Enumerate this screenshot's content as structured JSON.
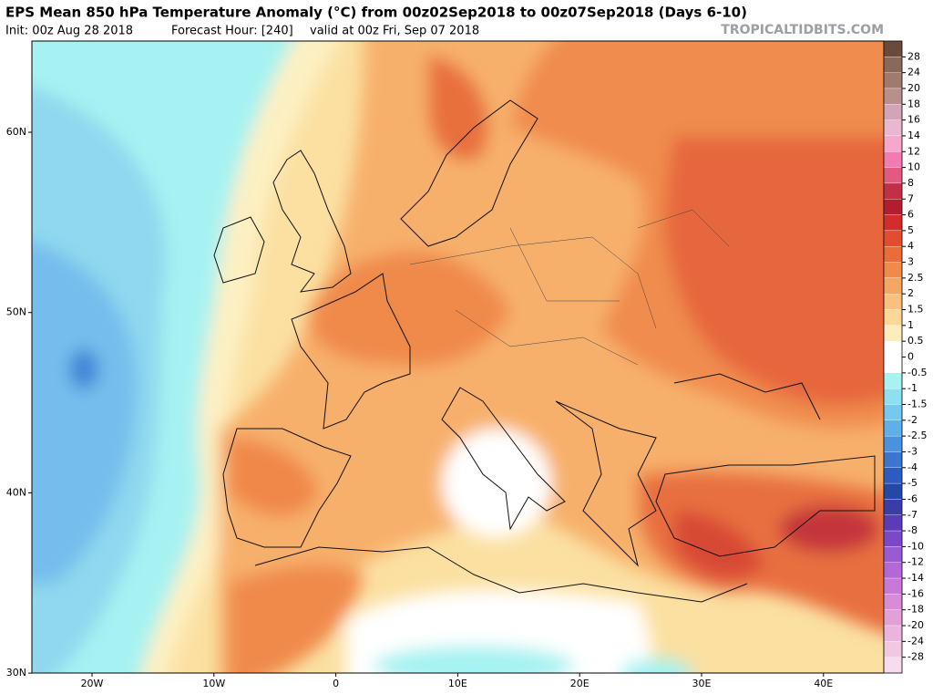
{
  "header": {
    "title": "EPS Mean 850 hPa Temperature Anomaly (°C) from 00z02Sep2018 to 00z07Sep2018 (Days 6-10)",
    "init": "Init: 00z Aug 28 2018",
    "forecast_hour": "Forecast Hour: [240]",
    "valid": "valid at 00z Fri, Sep 07 2018",
    "watermark": "TROPICALTIDBITS.COM"
  },
  "map": {
    "lat_labels": [
      "60N",
      "50N",
      "40N",
      "30N"
    ],
    "lon_labels": [
      "20W",
      "10W",
      "0",
      "10E",
      "20E",
      "30E",
      "40E"
    ]
  },
  "colorbar": {
    "levels": [
      28,
      24,
      20,
      18,
      16,
      14,
      12,
      10,
      8,
      7,
      6,
      5,
      4,
      3,
      2.5,
      2,
      1.5,
      1,
      0.5,
      0,
      -0.5,
      -1,
      -1.5,
      -2,
      -2.5,
      -3,
      -4,
      -5,
      -6,
      -7,
      -8,
      -10,
      -12,
      -14,
      -16,
      -18,
      -20,
      -24,
      -28
    ],
    "colors": [
      "#6b4a3c",
      "#8a685a",
      "#a07a6e",
      "#b98f8c",
      "#d3a3b6",
      "#e9b8d0",
      "#f7a6cc",
      "#f27cb2",
      "#e25a82",
      "#c42f48",
      "#b31d30",
      "#d22c2c",
      "#e24c30",
      "#ea6c3a",
      "#f08a4a",
      "#f5a662",
      "#f9c07e",
      "#fbd898",
      "#fdedbd",
      "#ffffff",
      "#ffffff",
      "#a8f2f2",
      "#8ee0f0",
      "#76c8ee",
      "#5fb0ea",
      "#4a92de",
      "#3a76d0",
      "#2c5cc0",
      "#2448a8",
      "#3a3ca8",
      "#5a3cb8",
      "#7a48c8",
      "#9a5ad4",
      "#b468d8",
      "#c878d8",
      "#d88cd8",
      "#e2a0d8",
      "#eab4dc",
      "#f0c8e2",
      "#f6dcec"
    ]
  }
}
